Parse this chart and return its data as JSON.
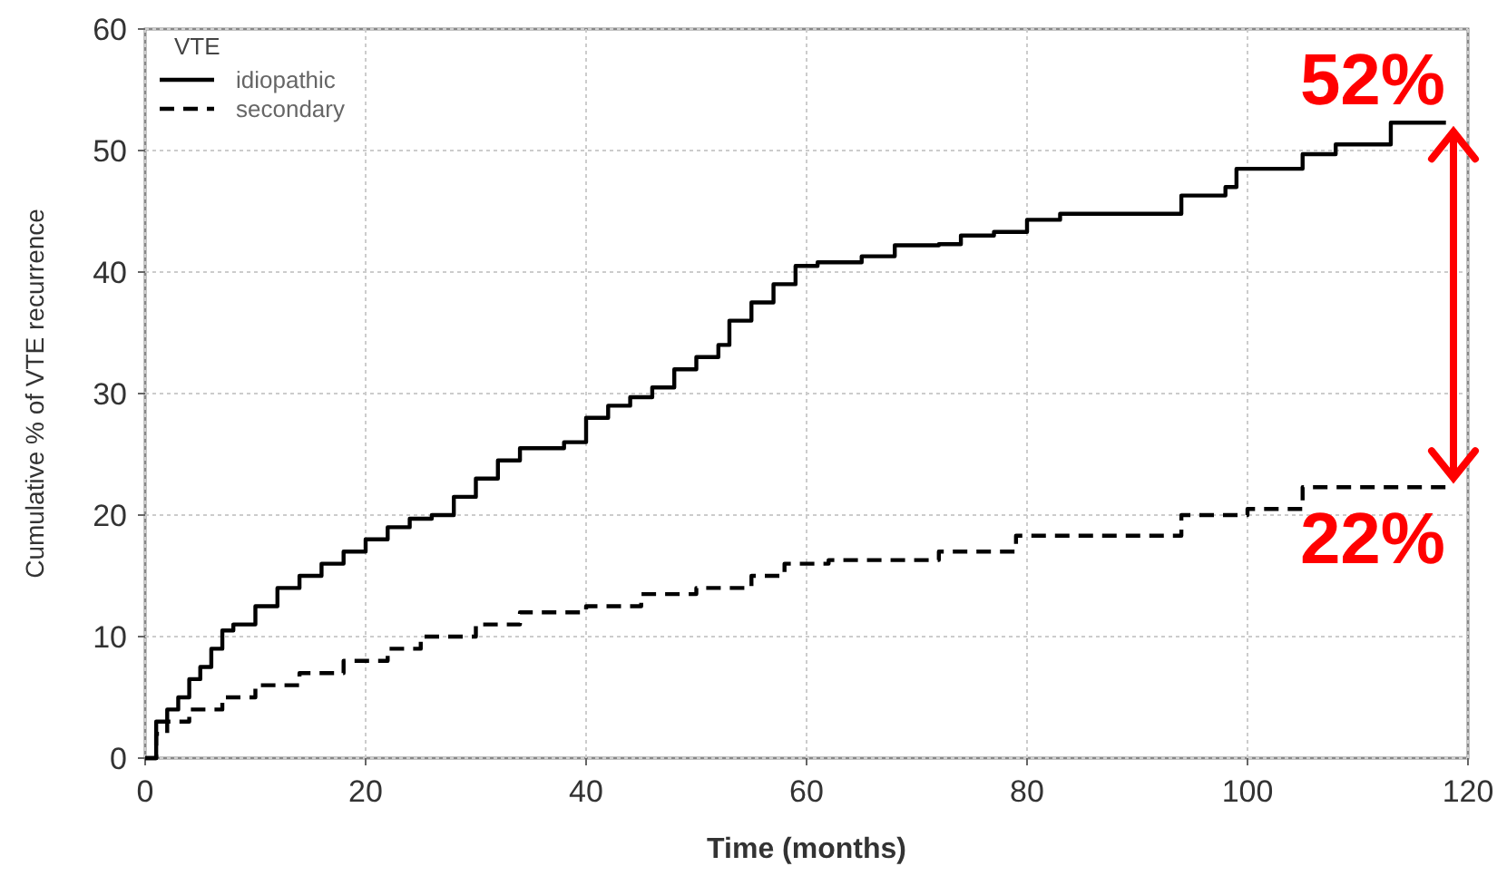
{
  "chart_data": {
    "type": "step",
    "xlabel": "Time (months)",
    "ylabel": "Cumulative % of VTE recurrence",
    "legend_title": "VTE",
    "legend": "top left",
    "grid": true,
    "xlim": [
      0,
      120
    ],
    "ylim": [
      0,
      60
    ],
    "xticks": [
      0,
      20,
      40,
      60,
      80,
      100,
      120
    ],
    "yticks": [
      0,
      10,
      20,
      30,
      40,
      50,
      60
    ],
    "series": [
      {
        "name": "idiopathic",
        "color": "#000000",
        "line_style": "solid",
        "x": [
          0,
          1,
          2,
          3,
          4,
          5,
          6,
          7,
          8,
          10,
          12,
          14,
          16,
          18,
          20,
          22,
          24,
          26,
          28,
          30,
          32,
          34,
          38,
          40,
          42,
          44,
          46,
          48,
          50,
          52,
          53,
          55,
          57,
          59,
          61,
          65,
          68,
          72,
          74,
          77,
          80,
          83,
          94,
          98,
          99,
          105,
          108,
          113,
          118
        ],
        "values": [
          0,
          3,
          4,
          5,
          6.5,
          7.5,
          9,
          10.5,
          11,
          12.5,
          14,
          15,
          16,
          17,
          18,
          19,
          19.7,
          20,
          21.5,
          23,
          24.5,
          25.5,
          26,
          28,
          29,
          29.7,
          30.5,
          32,
          33,
          34,
          36,
          37.5,
          39,
          40.5,
          40.8,
          41.3,
          42.2,
          42.3,
          43,
          43.3,
          44.3,
          44.8,
          46.3,
          47,
          48.5,
          49.7,
          50.5,
          52.3,
          52.3
        ]
      },
      {
        "name": "secondary",
        "color": "#000000",
        "line_style": "dashed",
        "x": [
          0,
          1,
          2,
          4,
          7,
          10,
          14,
          18,
          22,
          25,
          30,
          34,
          40,
          45,
          50,
          55,
          58,
          62,
          72,
          79,
          94,
          100,
          105,
          118
        ],
        "values": [
          0,
          2,
          3,
          4,
          5,
          6,
          7,
          8,
          9,
          10,
          11,
          12,
          12.5,
          13.5,
          14,
          15,
          16,
          16.3,
          17,
          18.3,
          20,
          20.5,
          22.3,
          22.3
        ]
      }
    ],
    "annotations": [
      {
        "text": "52%",
        "x": 113,
        "y": 52.3
      },
      {
        "text": "22%",
        "x": 113,
        "y": 22.3
      }
    ]
  }
}
